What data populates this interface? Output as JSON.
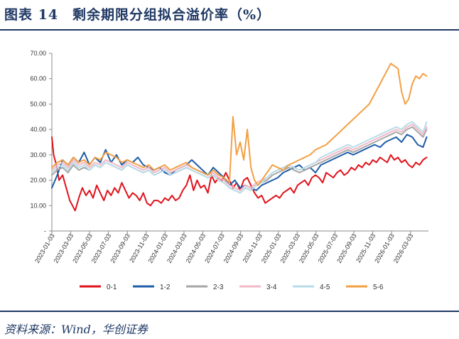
{
  "header": {
    "title": "图表 14　剩余期限分组拟合溢价率（%）"
  },
  "footer": {
    "source": "资料来源：Wind，华创证券"
  },
  "chart_data": {
    "type": "line",
    "title": "剩余期限分组拟合溢价率（%）",
    "ylim": [
      0,
      70
    ],
    "y_ticks": [
      "-",
      "10.00",
      "20.00",
      "30.00",
      "40.00",
      "50.00",
      "60.00",
      "70.00"
    ],
    "x_tick_labels": [
      "2023-01-03",
      "2023-03-03",
      "2023-05-03",
      "2023-07-03",
      "2023-09-03",
      "2023-11-03",
      "2024-01-03",
      "2024-03-03",
      "2024-05-03",
      "2024-07-03",
      "2024-09-03",
      "2024-11-03",
      "2025-01-03",
      "2025-03-03",
      "2025-05-03",
      "2025-07-03",
      "2025-09-03",
      "2025-11-03",
      "2026-01-03",
      "2026-03-03"
    ],
    "x_range": [
      0,
      21
    ],
    "legend_position": "bottom",
    "grid": false,
    "series": [
      {
        "name": "0-1",
        "color": "#e0121b",
        "x": [
          0,
          0.1,
          0.25,
          0.4,
          0.6,
          0.8,
          1.0,
          1.15,
          1.3,
          1.5,
          1.7,
          1.9,
          2.1,
          2.3,
          2.5,
          2.7,
          2.9,
          3.1,
          3.3,
          3.5,
          3.7,
          3.9,
          4.1,
          4.3,
          4.5,
          4.7,
          4.9,
          5.1,
          5.3,
          5.5,
          5.7,
          5.9,
          6.1,
          6.3,
          6.5,
          6.7,
          6.9,
          7.1,
          7.3,
          7.5,
          7.7,
          7.9,
          8.1,
          8.3,
          8.5,
          8.7,
          8.9,
          9.1,
          9.3,
          9.5,
          9.7,
          9.9,
          10.1,
          10.3,
          10.5,
          10.7,
          10.9,
          11.1,
          11.3,
          11.5,
          11.7,
          11.9,
          12.1,
          12.3,
          12.5,
          12.7,
          12.9,
          13.1,
          13.3,
          13.5,
          13.7,
          13.9,
          14.1,
          14.3,
          14.5,
          14.7,
          14.9,
          15.1,
          15.3,
          15.5,
          15.7,
          15.9,
          16.1,
          16.3,
          16.5,
          16.7,
          16.9,
          17.1,
          17.3,
          17.5,
          17.7,
          17.9,
          18.1,
          18.3,
          18.5,
          18.7,
          18.9,
          19.1,
          19.3,
          19.5,
          19.7,
          19.9,
          20.1,
          20.3,
          20.5,
          20.7,
          20.9
        ],
        "y": [
          37,
          30,
          26,
          20,
          22,
          17,
          12,
          10,
          8,
          13,
          17,
          14,
          16,
          13,
          18,
          15,
          12,
          16,
          14,
          17,
          15,
          19,
          16,
          13,
          15,
          14,
          12,
          15,
          11,
          10,
          12,
          12,
          11,
          13,
          12,
          14,
          12,
          13,
          16,
          18,
          22,
          16,
          20,
          17,
          18,
          15,
          22,
          19,
          21,
          20,
          23,
          20,
          17,
          19,
          16,
          20,
          21,
          18,
          15,
          13,
          14,
          11,
          12,
          13,
          14,
          13,
          15,
          16,
          17,
          15,
          18,
          19,
          20,
          18,
          21,
          22,
          21,
          19,
          23,
          22,
          21,
          23,
          24,
          22,
          23,
          25,
          24,
          26,
          25,
          27,
          26,
          28,
          27,
          29,
          28,
          27,
          30,
          28,
          29,
          27,
          28,
          26,
          25,
          27,
          26,
          28,
          29
        ]
      },
      {
        "name": "1-2",
        "color": "#1d5da8",
        "x": [
          0,
          0.3,
          0.6,
          0.9,
          1.2,
          1.5,
          1.8,
          2.1,
          2.4,
          2.7,
          3.0,
          3.3,
          3.6,
          3.9,
          4.2,
          4.5,
          4.8,
          5.1,
          5.4,
          5.7,
          6.0,
          6.3,
          6.6,
          6.9,
          7.2,
          7.5,
          7.8,
          8.1,
          8.4,
          8.7,
          9.0,
          9.3,
          9.6,
          9.9,
          10.2,
          10.5,
          10.8,
          11.1,
          11.4,
          11.7,
          12.0,
          12.3,
          12.6,
          12.9,
          13.2,
          13.5,
          13.8,
          14.1,
          14.4,
          14.7,
          15.0,
          15.3,
          15.6,
          15.9,
          16.2,
          16.5,
          16.8,
          17.1,
          17.4,
          17.7,
          18.0,
          18.3,
          18.6,
          18.9,
          19.2,
          19.5,
          19.8,
          20.1,
          20.4,
          20.7,
          20.9
        ],
        "y": [
          17,
          22,
          28,
          26,
          29,
          27,
          31,
          26,
          29,
          27,
          32,
          27,
          30,
          26,
          28,
          27,
          29,
          26,
          25,
          24,
          25,
          23,
          22,
          24,
          25,
          26,
          28,
          26,
          24,
          22,
          25,
          23,
          21,
          18,
          20,
          17,
          18,
          17,
          16,
          18,
          19,
          20,
          21,
          23,
          24,
          25,
          26,
          24,
          25,
          23,
          26,
          27,
          28,
          29,
          30,
          31,
          30,
          31,
          32,
          33,
          34,
          33,
          35,
          36,
          37,
          35,
          38,
          37,
          34,
          33,
          37
        ]
      },
      {
        "name": "2-3",
        "color": "#a6a6a6",
        "x": [
          0,
          0.3,
          0.6,
          0.9,
          1.2,
          1.5,
          1.8,
          2.1,
          2.4,
          2.7,
          3.0,
          3.3,
          3.6,
          3.9,
          4.2,
          4.5,
          4.8,
          5.1,
          5.4,
          5.7,
          6.0,
          6.3,
          6.6,
          6.9,
          7.2,
          7.5,
          7.8,
          8.1,
          8.4,
          8.7,
          9.0,
          9.3,
          9.6,
          9.9,
          10.2,
          10.5,
          10.8,
          11.1,
          11.4,
          11.7,
          12.0,
          12.3,
          12.6,
          12.9,
          13.2,
          13.5,
          13.8,
          14.1,
          14.4,
          14.7,
          15.0,
          15.3,
          15.6,
          15.9,
          16.2,
          16.5,
          16.8,
          17.1,
          17.4,
          17.7,
          18.0,
          18.3,
          18.6,
          18.9,
          19.2,
          19.5,
          19.8,
          20.1,
          20.4,
          20.7,
          20.9
        ],
        "y": [
          22,
          24,
          25,
          23,
          26,
          24,
          25,
          24,
          26,
          25,
          27,
          26,
          25,
          24,
          26,
          25,
          24,
          23,
          24,
          22,
          23,
          24,
          22,
          23,
          24,
          25,
          24,
          23,
          22,
          21,
          22,
          20,
          19,
          17,
          16,
          15,
          17,
          16,
          18,
          19,
          20,
          22,
          23,
          24,
          25,
          24,
          23,
          24,
          25,
          26,
          27,
          28,
          29,
          30,
          31,
          32,
          31,
          32,
          33,
          34,
          35,
          36,
          37,
          38,
          39,
          38,
          40,
          41,
          39,
          37,
          40
        ]
      },
      {
        "name": "3-4",
        "color": "#f2b8c6",
        "x": [
          0,
          0.3,
          0.6,
          0.9,
          1.2,
          1.5,
          1.8,
          2.1,
          2.4,
          2.7,
          3.0,
          3.3,
          3.6,
          3.9,
          4.2,
          4.5,
          4.8,
          5.1,
          5.4,
          5.7,
          6.0,
          6.3,
          6.6,
          6.9,
          7.2,
          7.5,
          7.8,
          8.1,
          8.4,
          8.7,
          9.0,
          9.3,
          9.6,
          9.9,
          10.2,
          10.5,
          10.8,
          11.1,
          11.4,
          11.7,
          12.0,
          12.3,
          12.6,
          12.9,
          13.2,
          13.5,
          13.8,
          14.1,
          14.4,
          14.7,
          15.0,
          15.3,
          15.6,
          15.9,
          16.2,
          16.5,
          16.8,
          17.1,
          17.4,
          17.7,
          18.0,
          18.3,
          18.6,
          18.9,
          19.2,
          19.5,
          19.8,
          20.1,
          20.4,
          20.7,
          20.9
        ],
        "y": [
          24,
          26,
          27,
          25,
          28,
          26,
          27,
          25,
          27,
          26,
          28,
          27,
          26,
          25,
          27,
          26,
          25,
          24,
          25,
          23,
          24,
          25,
          23,
          24,
          25,
          26,
          25,
          24,
          23,
          22,
          23,
          21,
          20,
          18,
          17,
          16,
          18,
          17,
          19,
          20,
          21,
          23,
          24,
          25,
          26,
          25,
          24,
          25,
          26,
          27,
          28,
          29,
          30,
          31,
          32,
          33,
          32,
          33,
          34,
          35,
          36,
          37,
          38,
          39,
          40,
          39,
          41,
          42,
          40,
          38,
          41
        ]
      },
      {
        "name": "4-5",
        "color": "#b7dde8",
        "x": [
          0,
          0.3,
          0.6,
          0.9,
          1.2,
          1.5,
          1.8,
          2.1,
          2.4,
          2.7,
          3.0,
          3.3,
          3.6,
          3.9,
          4.2,
          4.5,
          4.8,
          5.1,
          5.4,
          5.7,
          6.0,
          6.3,
          6.6,
          6.9,
          7.2,
          7.5,
          7.8,
          8.1,
          8.4,
          8.7,
          9.0,
          9.3,
          9.6,
          9.9,
          10.2,
          10.5,
          10.8,
          11.1,
          11.4,
          11.7,
          12.0,
          12.3,
          12.6,
          12.9,
          13.2,
          13.5,
          13.8,
          14.1,
          14.4,
          14.7,
          15.0,
          15.3,
          15.6,
          15.9,
          16.2,
          16.5,
          16.8,
          17.1,
          17.4,
          17.7,
          18.0,
          18.3,
          18.6,
          18.9,
          19.2,
          19.5,
          19.8,
          20.1,
          20.4,
          20.7,
          20.9
        ],
        "y": [
          23,
          25,
          26,
          24,
          27,
          25,
          26,
          24,
          26,
          25,
          27,
          26,
          25,
          24,
          26,
          25,
          24,
          23,
          24,
          22,
          23,
          24,
          22,
          23,
          24,
          25,
          24,
          23,
          22,
          21,
          22,
          20,
          19,
          17,
          16,
          15,
          17,
          16,
          18,
          19,
          21,
          23,
          24,
          25,
          26,
          25,
          24,
          25,
          26,
          27,
          29,
          30,
          31,
          32,
          33,
          34,
          33,
          34,
          35,
          36,
          37,
          38,
          39,
          40,
          41,
          40,
          42,
          43,
          41,
          39,
          43
        ]
      },
      {
        "name": "5-6",
        "color": "#f2a044",
        "x": [
          0,
          0.3,
          0.6,
          0.9,
          1.2,
          1.5,
          1.8,
          2.1,
          2.4,
          2.7,
          3.0,
          3.3,
          3.6,
          3.9,
          4.2,
          4.5,
          4.8,
          5.1,
          5.4,
          5.7,
          6.0,
          6.3,
          6.6,
          6.9,
          7.2,
          7.5,
          7.8,
          8.1,
          8.4,
          8.7,
          9.0,
          9.3,
          9.6,
          9.9,
          10.1,
          10.3,
          10.5,
          10.7,
          10.9,
          11.1,
          11.3,
          11.5,
          11.7,
          11.9,
          12.1,
          12.3,
          12.6,
          12.9,
          13.2,
          13.5,
          13.8,
          14.1,
          14.4,
          14.7,
          15.0,
          15.3,
          15.6,
          15.9,
          16.2,
          16.5,
          16.8,
          17.1,
          17.4,
          17.7,
          18.0,
          18.3,
          18.6,
          18.9,
          19.1,
          19.3,
          19.5,
          19.7,
          19.9,
          20.1,
          20.3,
          20.5,
          20.7,
          20.9
        ],
        "y": [
          25,
          27,
          28,
          26,
          29,
          27,
          28,
          26,
          29,
          28,
          31,
          30,
          29,
          27,
          28,
          27,
          26,
          25,
          26,
          24,
          25,
          26,
          24,
          25,
          26,
          27,
          25,
          24,
          23,
          22,
          24,
          22,
          21,
          19,
          45,
          30,
          35,
          28,
          40,
          25,
          20,
          18,
          20,
          22,
          24,
          26,
          25,
          24,
          26,
          27,
          28,
          29,
          30,
          32,
          33,
          34,
          36,
          38,
          40,
          42,
          44,
          46,
          48,
          50,
          54,
          58,
          62,
          66,
          65,
          64,
          55,
          50,
          52,
          58,
          61,
          60,
          62,
          61
        ]
      }
    ]
  }
}
